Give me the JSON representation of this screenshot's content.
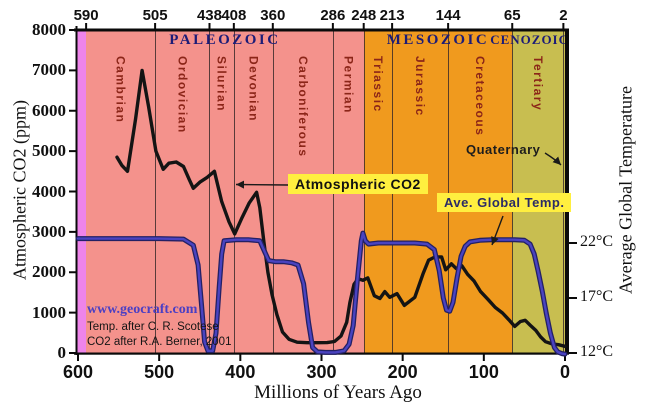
{
  "colors": {
    "precambrian_band": "#EE84EA",
    "paleozoic_band": "#F4928C",
    "mesozoic_band": "#F09A1E",
    "cenozoic_band": "#C8BE50",
    "legend_bg": "#FFEF3F",
    "era_text": "#1C1C77",
    "period_text": "#8B2518",
    "co2_line": "#141414",
    "temp_line": "#4A43C0",
    "temp_line_edge": "#232064"
  },
  "legend": {
    "co2": "Atmospheric CO2",
    "temp": "Ave. Global Temp."
  },
  "annotations": {
    "quaternary_label": "Quaternary"
  },
  "credits": {
    "site": "www.geocraft.com",
    "temp_credit": "Temp. after C. R. Scotese",
    "co2_credit": "CO2 after R.A. Berner, 2001"
  },
  "geology": {
    "eras": [
      {
        "name": "PALEOZOIC",
        "from": 590,
        "to": 248,
        "font": 15,
        "ls": 2.5,
        "dx": 0
      },
      {
        "name": "MESOZOIC",
        "from": 248,
        "to": 65,
        "font": 15,
        "ls": 2.5,
        "dx": 0
      },
      {
        "name": "CENOZOIC",
        "from": 65,
        "to": 0,
        "font": 13,
        "ls": 1,
        "dx": -9
      }
    ],
    "periods": [
      {
        "name": "",
        "from": 600,
        "to": 590,
        "color": "#EE84EA"
      },
      {
        "name": "Cambrian",
        "from": 590,
        "to": 505,
        "color": "#F4928C"
      },
      {
        "name": "Ordovician",
        "from": 505,
        "to": 438,
        "color": "#F4928C"
      },
      {
        "name": "Silurian",
        "from": 438,
        "to": 408,
        "color": "#F4928C"
      },
      {
        "name": "Devonian",
        "from": 408,
        "to": 360,
        "color": "#F4928C"
      },
      {
        "name": "Carboniferous",
        "from": 360,
        "to": 286,
        "color": "#F4928C"
      },
      {
        "name": "Permian",
        "from": 286,
        "to": 248,
        "color": "#F4928C"
      },
      {
        "name": "Triassic",
        "from": 248,
        "to": 213,
        "color": "#F09A1E"
      },
      {
        "name": "Jurassic",
        "from": 213,
        "to": 144,
        "color": "#F09A1E"
      },
      {
        "name": "Cretaceous",
        "from": 144,
        "to": 65,
        "color": "#F09A1E"
      },
      {
        "name": "Tertiary",
        "from": 65,
        "to": 2,
        "color": "#C8BE50"
      },
      {
        "name": "Quaternary",
        "from": 2,
        "to": 0,
        "color": "#C8BE50",
        "label_outside": true
      }
    ]
  },
  "chart_data": {
    "type": "line",
    "title": "",
    "x_axis": {
      "label": "Millions of Years Ago",
      "range": [
        600,
        0
      ],
      "ticks": [
        600,
        500,
        400,
        300,
        200,
        100,
        0
      ]
    },
    "y_left": {
      "label": "Atmospheric CO2 (ppm)",
      "range": [
        0,
        8000
      ],
      "ticks": [
        0,
        1000,
        2000,
        3000,
        4000,
        5000,
        6000,
        7000,
        8000
      ]
    },
    "y_right": {
      "label": "Average Global Temperature",
      "unit": "°C",
      "ticks": [
        {
          "v": 22,
          "label": "22°C"
        },
        {
          "v": 17,
          "label": "17°C"
        },
        {
          "v": 12,
          "label": "12°C"
        }
      ]
    },
    "top_axis_boundary_ticks": [
      590,
      505,
      438,
      408,
      360,
      286,
      248,
      213,
      144,
      65,
      2
    ],
    "series": [
      {
        "name": "Atmospheric CO2",
        "axis": "left",
        "color": "#141414",
        "points": [
          [
            552,
            4850
          ],
          [
            546,
            4650
          ],
          [
            539,
            4500
          ],
          [
            529,
            5800
          ],
          [
            521,
            7000
          ],
          [
            513,
            6100
          ],
          [
            504,
            5000
          ],
          [
            495,
            4550
          ],
          [
            488,
            4700
          ],
          [
            479,
            4730
          ],
          [
            470,
            4620
          ],
          [
            463,
            4300
          ],
          [
            458,
            4080
          ],
          [
            450,
            4230
          ],
          [
            441,
            4350
          ],
          [
            432,
            4500
          ],
          [
            423,
            3750
          ],
          [
            414,
            3250
          ],
          [
            407,
            2950
          ],
          [
            398,
            3350
          ],
          [
            389,
            3720
          ],
          [
            380,
            3980
          ],
          [
            376,
            3600
          ],
          [
            371,
            2750
          ],
          [
            366,
            2000
          ],
          [
            361,
            1450
          ],
          [
            355,
            950
          ],
          [
            348,
            520
          ],
          [
            340,
            340
          ],
          [
            330,
            268
          ],
          [
            318,
            256
          ],
          [
            305,
            254
          ],
          [
            293,
            258
          ],
          [
            284,
            285
          ],
          [
            276,
            420
          ],
          [
            269,
            760
          ],
          [
            265,
            1250
          ],
          [
            260,
            1700
          ],
          [
            255,
            1840
          ],
          [
            249,
            1800
          ],
          [
            243,
            1860
          ],
          [
            235,
            1420
          ],
          [
            228,
            1350
          ],
          [
            222,
            1520
          ],
          [
            216,
            1380
          ],
          [
            207,
            1470
          ],
          [
            198,
            1180
          ],
          [
            185,
            1380
          ],
          [
            175,
            1960
          ],
          [
            168,
            2300
          ],
          [
            160,
            2380
          ],
          [
            152,
            2380
          ],
          [
            147,
            2060
          ],
          [
            140,
            2210
          ],
          [
            134,
            2090
          ],
          [
            127,
            2160
          ],
          [
            120,
            1950
          ],
          [
            112,
            1780
          ],
          [
            104,
            1520
          ],
          [
            95,
            1330
          ],
          [
            86,
            1130
          ],
          [
            77,
            990
          ],
          [
            69,
            820
          ],
          [
            62,
            660
          ],
          [
            55,
            780
          ],
          [
            49,
            810
          ],
          [
            43,
            690
          ],
          [
            36,
            560
          ],
          [
            30,
            400
          ],
          [
            24,
            280
          ],
          [
            16,
            225
          ],
          [
            8,
            205
          ],
          [
            0,
            165
          ]
        ]
      },
      {
        "name": "Ave. Global Temp.",
        "axis": "right",
        "color": "#4A43C0",
        "points": [
          [
            600,
            22.4
          ],
          [
            550,
            22.4
          ],
          [
            500,
            22.4
          ],
          [
            470,
            22.35
          ],
          [
            458,
            21.8
          ],
          [
            452,
            20
          ],
          [
            448,
            16.5
          ],
          [
            444,
            13
          ],
          [
            440,
            12.2
          ],
          [
            434,
            12.2
          ],
          [
            430,
            13.8
          ],
          [
            426,
            18
          ],
          [
            423,
            21
          ],
          [
            420,
            22.2
          ],
          [
            405,
            22.3
          ],
          [
            390,
            22.3
          ],
          [
            376,
            22.2
          ],
          [
            370,
            21.2
          ],
          [
            365,
            20.4
          ],
          [
            357,
            20.3
          ],
          [
            347,
            20.3
          ],
          [
            337,
            20.2
          ],
          [
            329,
            20
          ],
          [
            322,
            18.3
          ],
          [
            316,
            14.8
          ],
          [
            311,
            12.5
          ],
          [
            305,
            12.1
          ],
          [
            295,
            12.05
          ],
          [
            283,
            12.05
          ],
          [
            272,
            12.2
          ],
          [
            266,
            12.8
          ],
          [
            261,
            14.5
          ],
          [
            256,
            18.5
          ],
          [
            251,
            22.2
          ],
          [
            249,
            22.9
          ],
          [
            246,
            22.2
          ],
          [
            242,
            21.9
          ],
          [
            230,
            22
          ],
          [
            215,
            22
          ],
          [
            200,
            22
          ],
          [
            185,
            22
          ],
          [
            170,
            21.9
          ],
          [
            161,
            21.4
          ],
          [
            155,
            19.5
          ],
          [
            150,
            17
          ],
          [
            146,
            15.9
          ],
          [
            142,
            15.8
          ],
          [
            138,
            16.6
          ],
          [
            133,
            18.8
          ],
          [
            128,
            20.8
          ],
          [
            123,
            21.7
          ],
          [
            117,
            22.1
          ],
          [
            105,
            22.25
          ],
          [
            90,
            22.3
          ],
          [
            75,
            22.3
          ],
          [
            62,
            22.3
          ],
          [
            50,
            22.25
          ],
          [
            43,
            21.9
          ],
          [
            38,
            21
          ],
          [
            33,
            19.4
          ],
          [
            28,
            17.6
          ],
          [
            23,
            15.6
          ],
          [
            18,
            13.8
          ],
          [
            13,
            12.5
          ],
          [
            9,
            12.1
          ],
          [
            4,
            11.95
          ],
          [
            0,
            11.9
          ]
        ]
      }
    ]
  }
}
